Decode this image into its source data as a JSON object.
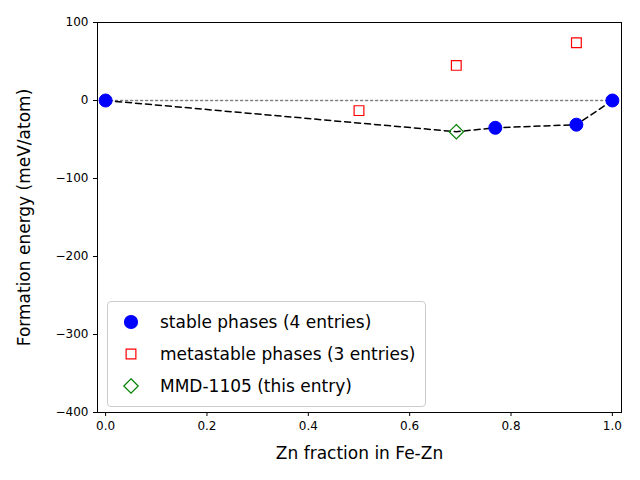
{
  "chart_data": {
    "type": "scatter",
    "x_label": "Zn fraction in Fe-Zn",
    "y_label": "Formation energy (meV/atom)",
    "xlim": [
      -0.016,
      1.018
    ],
    "ylim": [
      -400,
      100
    ],
    "xticks": [
      {
        "value": 0,
        "label": "0.0"
      },
      {
        "value": 0.2,
        "label": "0.2"
      },
      {
        "value": 0.4,
        "label": "0.4"
      },
      {
        "value": 0.6,
        "label": "0.6"
      },
      {
        "value": 0.8,
        "label": "0.8"
      },
      {
        "value": 1,
        "label": "1.0"
      }
    ],
    "yticks": [
      {
        "value": -400,
        "label": "−400"
      },
      {
        "value": -300,
        "label": "−300"
      },
      {
        "value": -200,
        "label": "−200"
      },
      {
        "value": -100,
        "label": "−100"
      },
      0,
      100
    ],
    "legend": "lower left",
    "series": [
      {
        "name": "stable phases (4 entries)",
        "color": "#0000ff",
        "marker": "circle",
        "x": [
          0.0,
          0.769,
          0.929,
          1.0
        ],
        "values": [
          0,
          -35,
          -31,
          0
        ]
      },
      {
        "name": "metastable phases (3 entries)",
        "color": "#ff0000",
        "marker": "square-open",
        "x": [
          0.5,
          0.692,
          0.929
        ],
        "values": [
          -13,
          45,
          74
        ]
      },
      {
        "name": "MMD-1105 (this entry)",
        "color": "#008000",
        "marker": "diamond-open",
        "x": [
          0.692
        ],
        "values": [
          -40
        ]
      }
    ],
    "hull": {
      "color": "#000000",
      "line_style": "dashed",
      "x": [
        0.0,
        0.692,
        0.769,
        0.929,
        1.0
      ],
      "values": [
        0,
        -40,
        -35,
        -31,
        0
      ]
    },
    "reference_line": {
      "color": "#808080",
      "line_style": "dotted",
      "x": [
        0,
        1
      ],
      "values": [
        0,
        0
      ]
    }
  }
}
